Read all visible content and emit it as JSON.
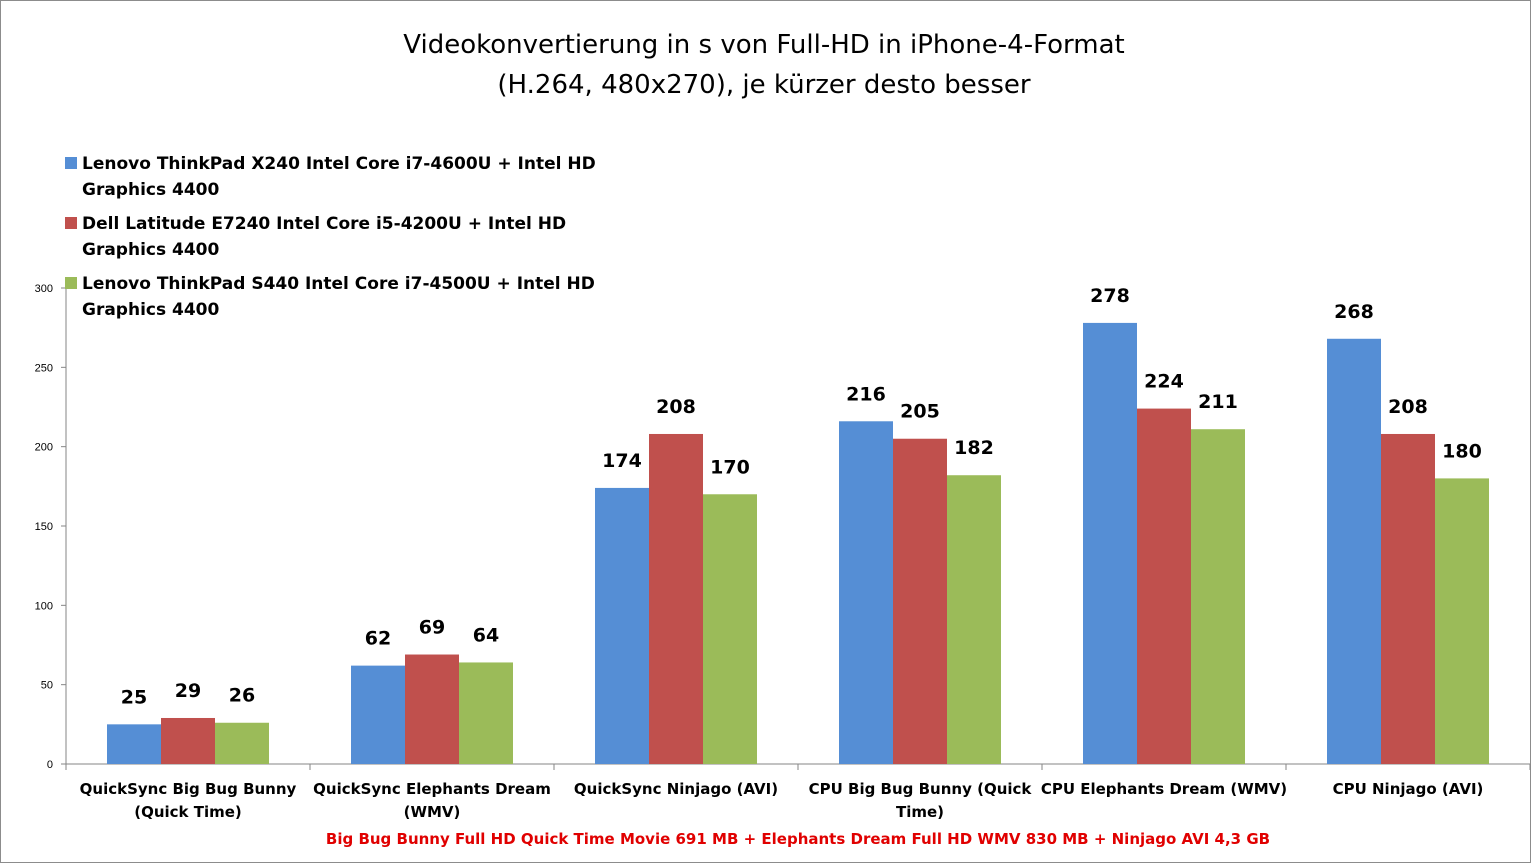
{
  "chart_data": {
    "type": "bar",
    "title_lines": [
      "Videokonvertierung in s von Full-HD in iPhone-4-Format",
      "(H.264, 480x270), je kürzer desto besser"
    ],
    "categories": [
      [
        "QuickSync Big Bug Bunny",
        "(Quick Time)"
      ],
      [
        "QuickSync Elephants Dream",
        "(WMV)"
      ],
      [
        "QuickSync Ninjago (AVI)"
      ],
      [
        "CPU Big Bug Bunny (Quick",
        "Time)"
      ],
      [
        "CPU Elephants Dream (WMV)"
      ],
      [
        "CPU Ninjago (AVI)"
      ]
    ],
    "series": [
      {
        "name_lines": [
          "Lenovo ThinkPad  X240 Intel Core i7-4600U + Intel HD",
          "Graphics 4400"
        ],
        "color": "#558ED5",
        "values": [
          25,
          62,
          174,
          216,
          278,
          268
        ]
      },
      {
        "name_lines": [
          "Dell Latitude  E7240 Intel Core i5-4200U + Intel HD",
          "Graphics 4400"
        ],
        "color": "#C0504D",
        "values": [
          29,
          69,
          208,
          205,
          224,
          208
        ]
      },
      {
        "name_lines": [
          "Lenovo ThinkPad  S440 Intel Core i7-4500U + Intel HD",
          "Graphics 4400"
        ],
        "color": "#9BBB59",
        "values": [
          26,
          64,
          170,
          182,
          211,
          180
        ]
      }
    ],
    "y_ticks": [
      0,
      50,
      100,
      150,
      200,
      250,
      300
    ],
    "ylim": [
      0,
      300
    ],
    "grid": false,
    "legend_position": "top-left",
    "data_labels": true,
    "footnote": "Big Bug Bunny Full HD Quick Time Movie 691 MB + Elephants Dream Full HD WMV 830 MB + Ninjago AVI 4,3 GB",
    "footnote_color": "#E00000"
  }
}
